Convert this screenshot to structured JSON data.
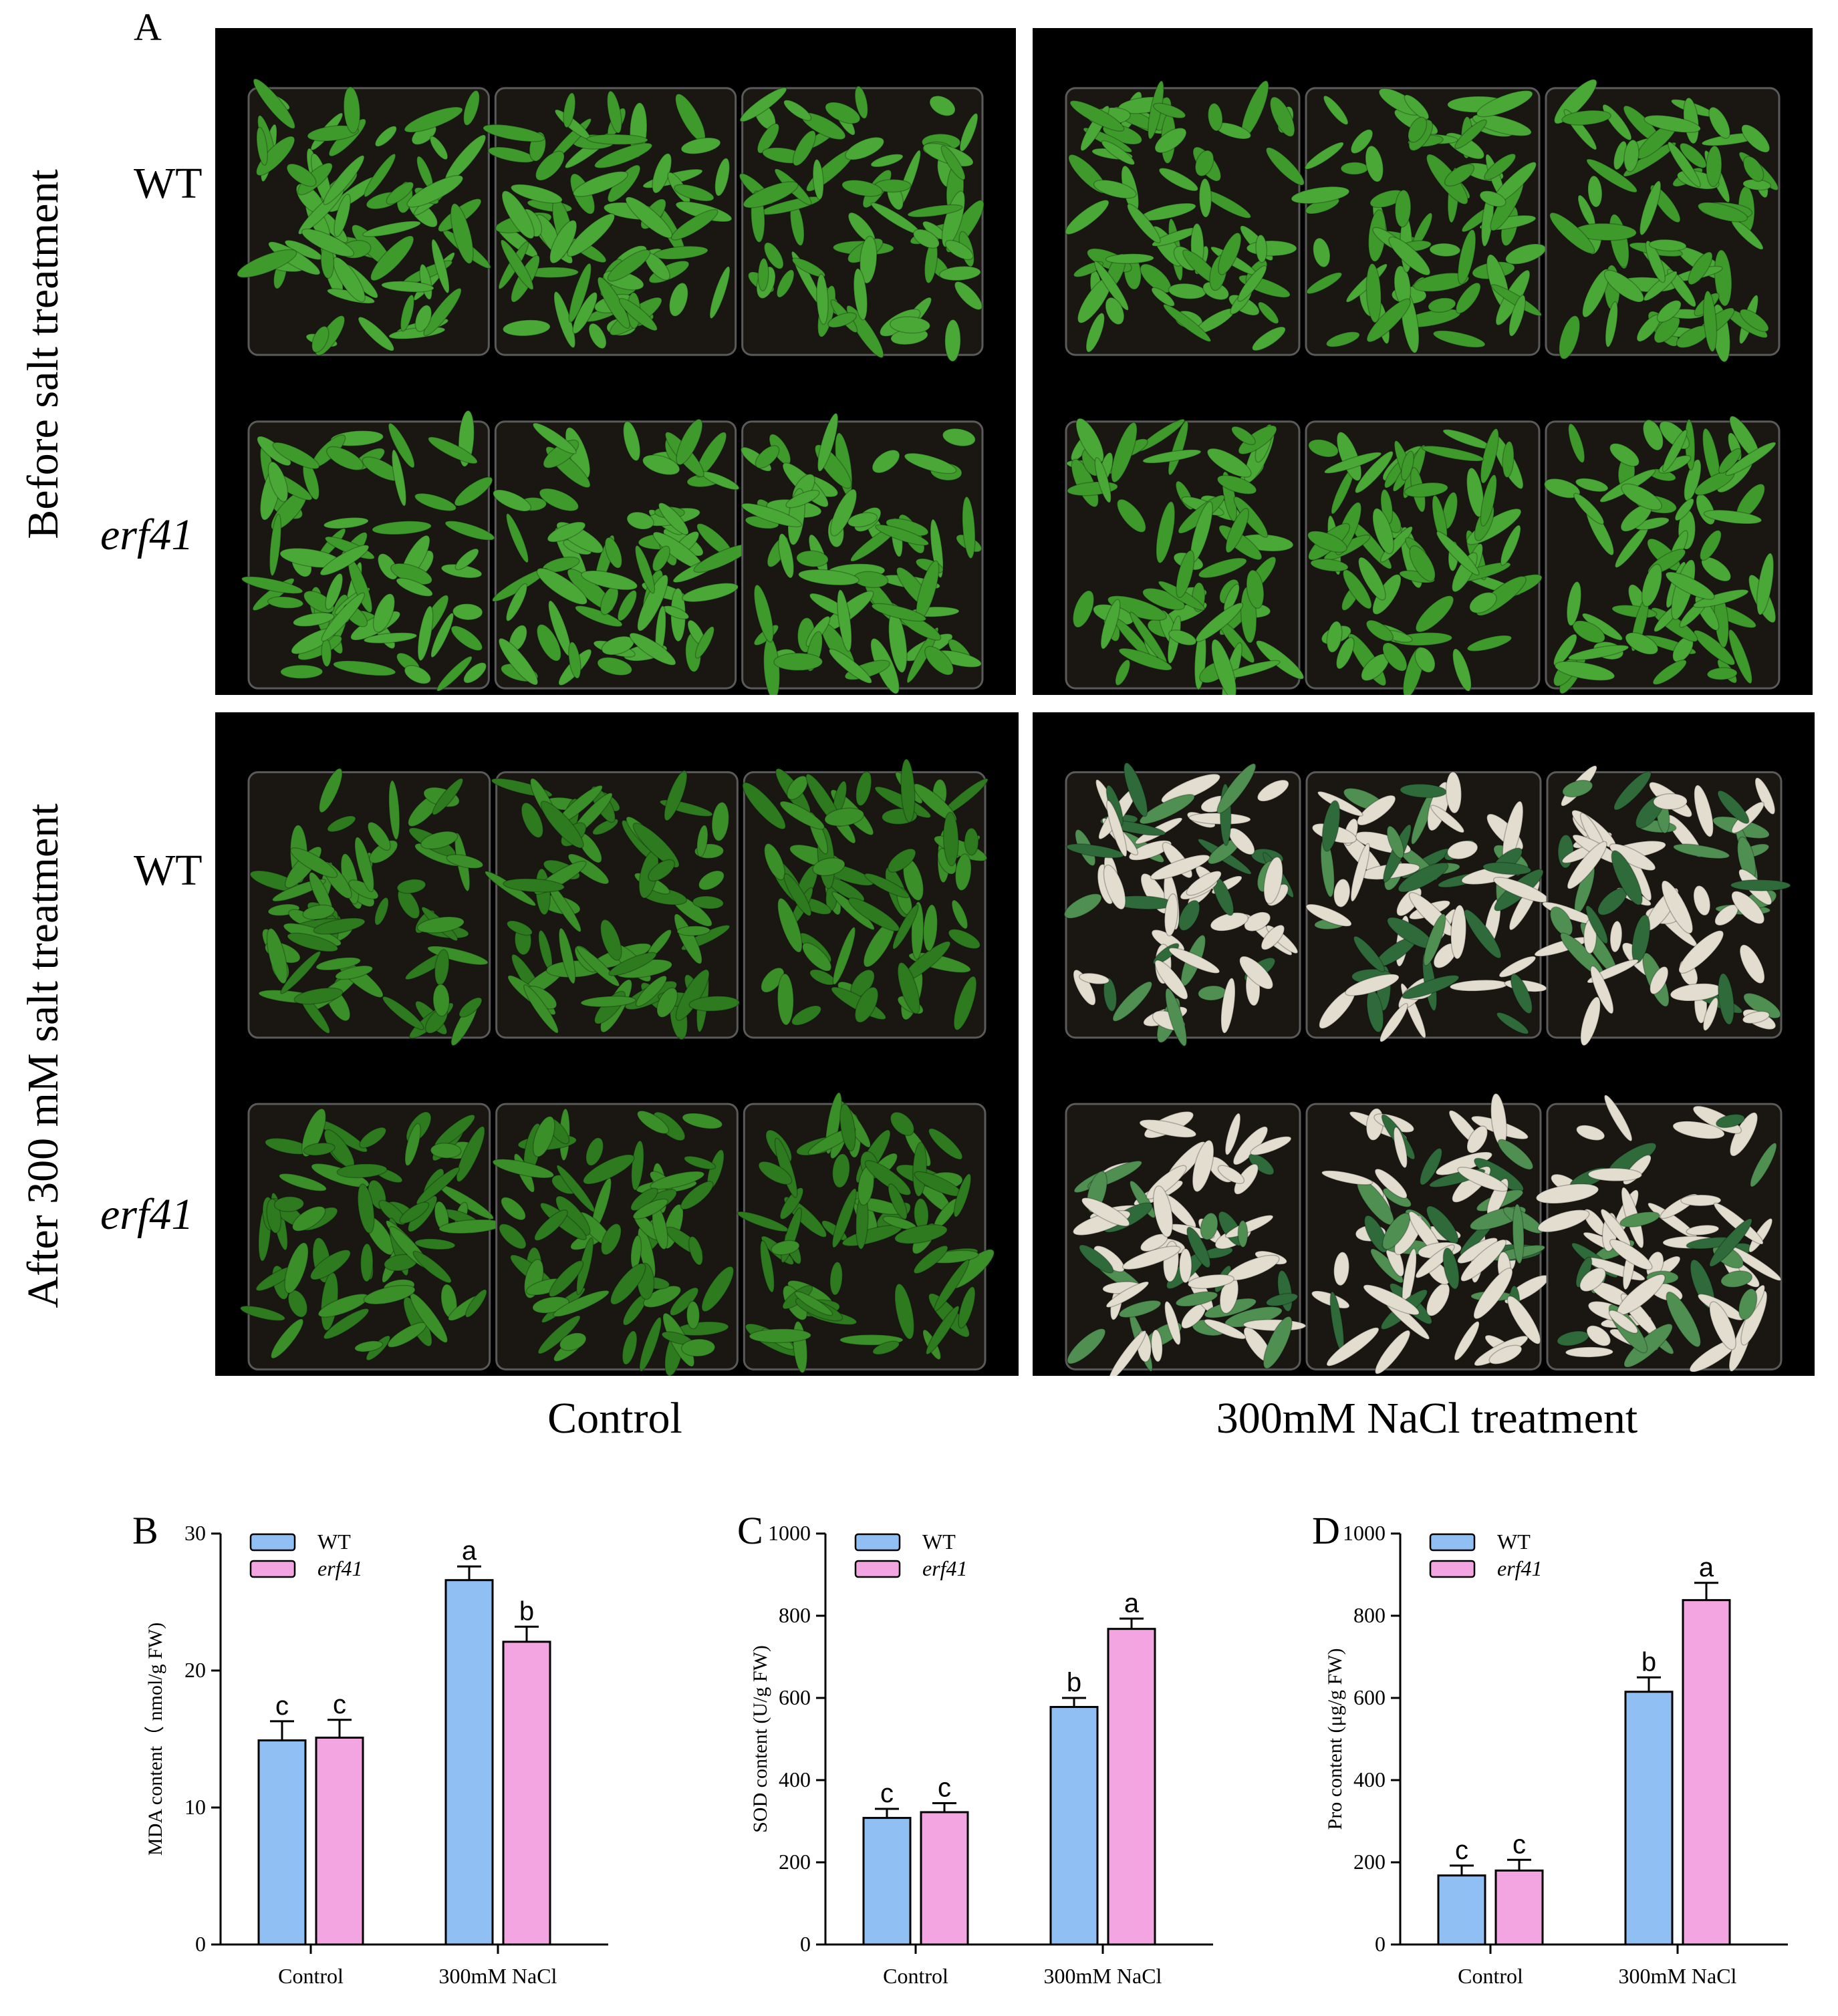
{
  "figure_a": {
    "panel_letter": "A",
    "row_group_labels": [
      "Before salt treatment",
      "After 300 mM salt treatment"
    ],
    "genotype_labels": [
      "WT",
      "erf41",
      "WT",
      "erf41"
    ],
    "column_labels": [
      "Control",
      "300mM NaCl treatment"
    ],
    "colors": {
      "healthy_leaf": "#3f9a2c",
      "dark_leaf": "#2d7a1f",
      "wilted_leaf": "#e2ddcf",
      "background": "#000000"
    }
  },
  "chart_data": [
    {
      "type": "bar",
      "panel_letter": "B",
      "categories": [
        "Control",
        "300mM NaCl"
      ],
      "ylabel": "MDA content（ nmol/g FW)",
      "ylim": [
        0,
        30
      ],
      "yticks": [
        "0",
        "10",
        "20",
        "30"
      ],
      "series": [
        {
          "name": "WT",
          "values": [
            14.9,
            26.6
          ],
          "errors": [
            1.4,
            1.0
          ],
          "letters": [
            "c",
            "a"
          ],
          "color": "#8fbff3"
        },
        {
          "name": "erf41",
          "values": [
            15.1,
            22.1
          ],
          "errors": [
            1.3,
            1.1
          ],
          "letters": [
            "c",
            "b"
          ],
          "color": "#f3a5e2"
        }
      ]
    },
    {
      "type": "bar",
      "panel_letter": "C",
      "categories": [
        "Control",
        "300mM NaCl"
      ],
      "ylabel": "SOD content (U/g FW)",
      "ylim": [
        0,
        1000
      ],
      "yticks": [
        "0",
        "200",
        "400",
        "600",
        "800",
        "1000"
      ],
      "series": [
        {
          "name": "WT",
          "values": [
            308,
            578
          ],
          "errors": [
            22,
            22
          ],
          "letters": [
            "c",
            "b"
          ],
          "color": "#8fbff3"
        },
        {
          "name": "erf41",
          "values": [
            322,
            768
          ],
          "errors": [
            22,
            25
          ],
          "letters": [
            "c",
            "a"
          ],
          "color": "#f3a5e2"
        }
      ]
    },
    {
      "type": "bar",
      "panel_letter": "D",
      "categories": [
        "Control",
        "300mM NaCl"
      ],
      "ylabel": "Pro content (μg/g FW)",
      "ylim": [
        0,
        1000
      ],
      "yticks": [
        "0",
        "200",
        "400",
        "600",
        "800",
        "1000"
      ],
      "series": [
        {
          "name": "WT",
          "values": [
            168,
            615
          ],
          "errors": [
            24,
            35
          ],
          "letters": [
            "c",
            "b"
          ],
          "color": "#8fbff3"
        },
        {
          "name": "erf41",
          "values": [
            180,
            838
          ],
          "errors": [
            26,
            42
          ],
          "letters": [
            "c",
            "a"
          ],
          "color": "#f3a5e2"
        }
      ]
    }
  ]
}
